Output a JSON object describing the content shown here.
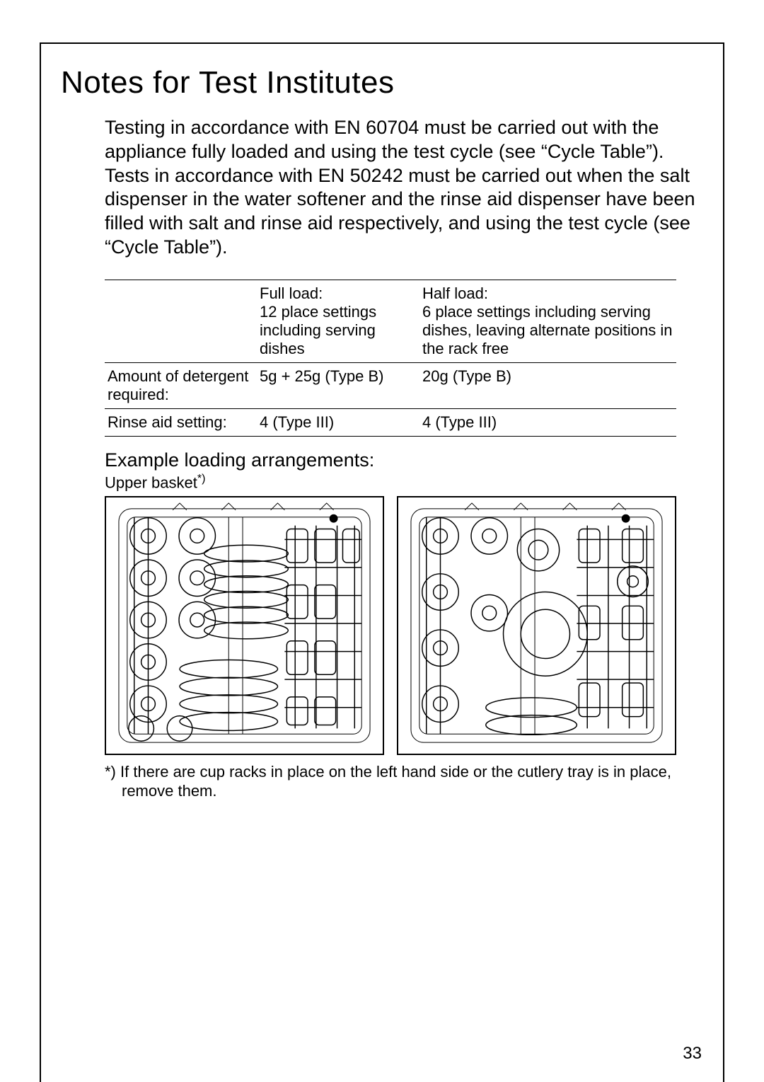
{
  "title": "Notes for Test Institutes",
  "body": "Testing in accordance with EN 60704 must be carried out with the appliance fully loaded and using the test cycle (see “Cycle Table”). Tests in accordance with EN 50242 must be carried out when the salt dispenser in the water softener and the rinse aid dispenser have been filled with salt and rinse aid respectively, and using the test cycle (see “Cycle Table”).",
  "table": {
    "header_empty": "",
    "header_full": "Full load:\n12 place settings including serving dishes",
    "header_half": "Half load:\n6 place settings including serving dishes, leaving alternate positions in the rack free",
    "rows": [
      {
        "label": "Amount of detergent required:",
        "full": "5g + 25g (Type B)",
        "half": "20g (Type B)"
      },
      {
        "label": "Rinse aid setting:",
        "full": "4 (Type III)",
        "half": "4 (Type III)"
      }
    ]
  },
  "subheading": "Example loading arrangements:",
  "caption_prefix": "Upper basket",
  "caption_sup": "*)",
  "footnote": "*) If there are cup racks in place on the left hand side or the cutlery tray is in place, remove them.",
  "page_number": "33",
  "colors": {
    "text": "#000000",
    "background": "#ffffff",
    "border": "#000000"
  },
  "diagrams": [
    {
      "name": "upper-basket-full-load"
    },
    {
      "name": "upper-basket-half-load"
    }
  ]
}
